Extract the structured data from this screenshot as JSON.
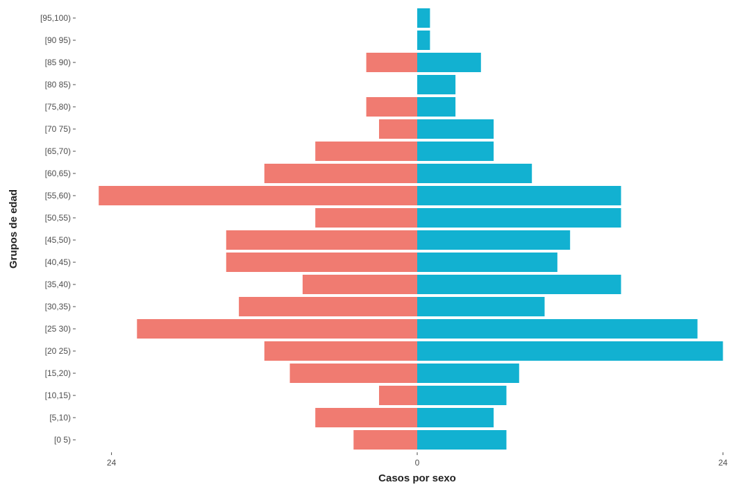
{
  "chart_data": {
    "type": "bar",
    "orientation": "horizontal",
    "layout": "population-pyramid",
    "xlabel": "Casos por sexo",
    "ylabel": "Grupos de edad",
    "x_ticks": [
      "24",
      "0",
      "24"
    ],
    "xlim": [
      -24,
      24
    ],
    "grid": false,
    "legend": "none",
    "categories": [
      "[0 5)",
      "[5,10)",
      "[10,15)",
      "[15,20)",
      "[20 25)",
      "[25 30)",
      "[30,35)",
      "[35,40)",
      "[40,45)",
      "[45,50)",
      "[50,55)",
      "[55,60)",
      "[60,65)",
      "[65,70)",
      "[70 75)",
      "[75,80)",
      "[80 85)",
      "[85 90)",
      "[90 95)",
      "[95,100)"
    ],
    "series": [
      {
        "side": "left",
        "color": "#f07b71",
        "values": [
          5,
          8,
          3,
          10,
          12,
          22,
          14,
          9,
          15,
          15,
          8,
          25,
          12,
          8,
          3,
          4,
          0,
          4,
          0,
          0
        ]
      },
      {
        "side": "right",
        "color": "#12b1d1",
        "values": [
          7,
          6,
          7,
          8,
          24,
          22,
          10,
          16,
          11,
          12,
          16,
          16,
          9,
          6,
          6,
          3,
          3,
          5,
          1,
          1
        ]
      }
    ]
  }
}
